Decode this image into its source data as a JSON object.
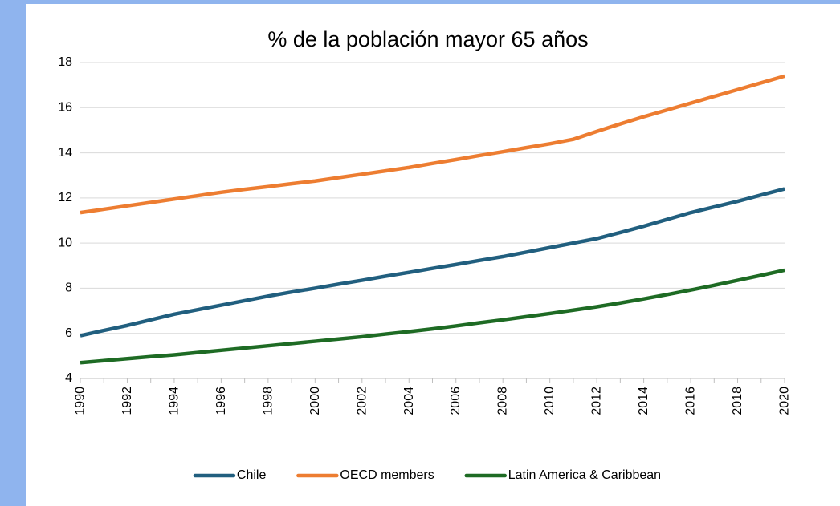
{
  "chart_data": {
    "type": "line",
    "title": "% de la población mayor 65 años",
    "x": [
      1990,
      1991,
      1992,
      1993,
      1994,
      1995,
      1996,
      1997,
      1998,
      1999,
      2000,
      2001,
      2002,
      2003,
      2004,
      2005,
      2006,
      2007,
      2008,
      2009,
      2010,
      2011,
      2012,
      2013,
      2014,
      2015,
      2016,
      2017,
      2018,
      2019,
      2020
    ],
    "series": [
      {
        "name": "Chile",
        "color": "#215f7f",
        "values": [
          5.9,
          6.13,
          6.35,
          6.6,
          6.85,
          7.05,
          7.25,
          7.45,
          7.65,
          7.83,
          8.0,
          8.18,
          8.35,
          8.53,
          8.7,
          8.88,
          9.05,
          9.23,
          9.4,
          9.6,
          9.8,
          10.0,
          10.2,
          10.47,
          10.75,
          11.05,
          11.35,
          11.6,
          11.85,
          12.13,
          12.4
        ]
      },
      {
        "name": "OECD members",
        "color": "#ed7d31",
        "values": [
          11.35,
          11.5,
          11.65,
          11.8,
          11.95,
          12.1,
          12.25,
          12.38,
          12.5,
          12.63,
          12.75,
          12.9,
          13.05,
          13.2,
          13.35,
          13.53,
          13.7,
          13.88,
          14.05,
          14.23,
          14.4,
          14.6,
          14.95,
          15.28,
          15.6,
          15.9,
          16.2,
          16.5,
          16.8,
          17.1,
          17.4
        ]
      },
      {
        "name": "Latin America & Caribbean",
        "color": "#1e6b24",
        "values": [
          4.7,
          4.79,
          4.88,
          4.97,
          5.05,
          5.15,
          5.25,
          5.35,
          5.45,
          5.55,
          5.65,
          5.75,
          5.85,
          5.97,
          6.08,
          6.2,
          6.33,
          6.47,
          6.6,
          6.74,
          6.88,
          7.03,
          7.18,
          7.35,
          7.53,
          7.72,
          7.92,
          8.13,
          8.35,
          8.57,
          8.8
        ]
      }
    ],
    "xlim": [
      1990,
      2020
    ],
    "xticks": [
      1990,
      1992,
      1994,
      1996,
      1998,
      2000,
      2002,
      2004,
      2006,
      2008,
      2010,
      2012,
      2014,
      2016,
      2018,
      2020
    ],
    "ylim": [
      4,
      18
    ],
    "yticks": [
      4,
      6,
      8,
      10,
      12,
      14,
      16,
      18
    ],
    "grid": true,
    "legend": "bottom"
  }
}
